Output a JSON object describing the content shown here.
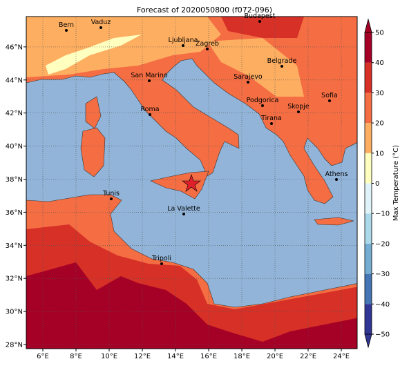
{
  "title": "Forecast of 2020050800 (f072-096)",
  "lon_ticks": [
    "6°E",
    "8°E",
    "10°E",
    "12°E",
    "14°E",
    "16°E",
    "18°E",
    "20°E",
    "22°E",
    "24°E"
  ],
  "lat_ticks": [
    "28°N",
    "30°N",
    "32°N",
    "34°N",
    "36°N",
    "38°N",
    "40°N",
    "42°N",
    "44°N",
    "46°N"
  ],
  "cities": [
    "Bern",
    "Vaduz",
    "Budapest",
    "Ljubljana",
    "Zagreb",
    "Belgrade",
    "San Marino",
    "Sarajevo",
    "Sofia",
    "Podgorica",
    "Skopje",
    "Roma",
    "Tirana",
    "Athens",
    "Tunis",
    "La Valette",
    "Tripoli"
  ],
  "colorbar": {
    "label": "Max Temperature (°C)",
    "ticks": [
      {
        "value": -50,
        "label": "−50"
      },
      {
        "value": -40,
        "label": "−40"
      },
      {
        "value": -30,
        "label": "−30"
      },
      {
        "value": -20,
        "label": "−20"
      },
      {
        "value": -10,
        "label": "−10"
      },
      0,
      10,
      20,
      30,
      40,
      50
    ],
    "colors": [
      "#313695",
      "#4575b4",
      "#74add1",
      "#abd9e9",
      "#e0f3f8",
      "#ffffbf",
      "#fdae61",
      "#f46d43",
      "#d73027",
      "#a50026"
    ]
  }
}
